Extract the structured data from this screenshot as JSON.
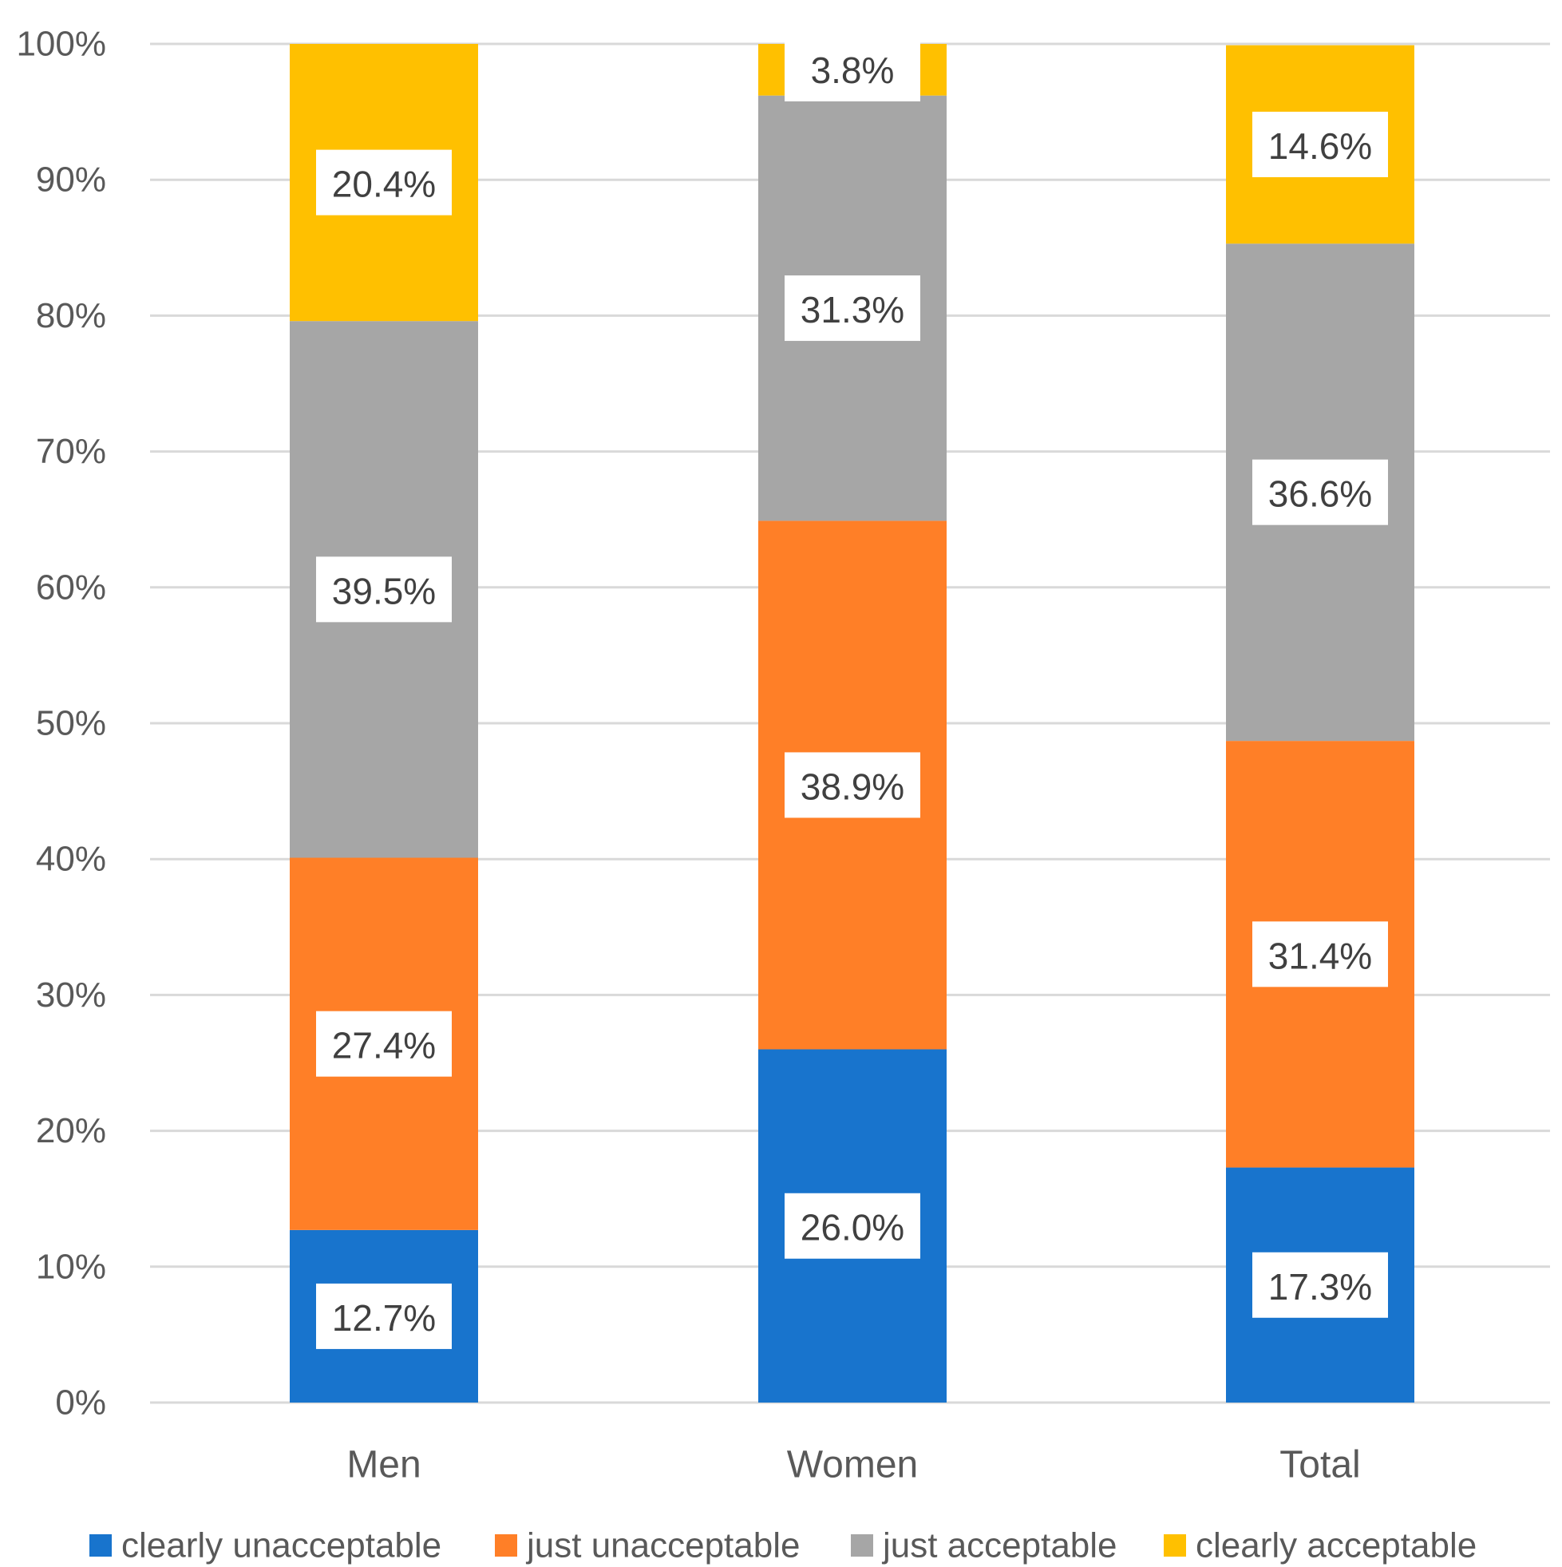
{
  "chart_data": {
    "type": "bar",
    "stacked": true,
    "categories": [
      "Men",
      "Women",
      "Total"
    ],
    "series": [
      {
        "name": "clearly unacceptable",
        "color": "#1874CD",
        "values": [
          12.7,
          26.0,
          17.3
        ],
        "labels": [
          "12.7%",
          "26.0%",
          "17.3%"
        ]
      },
      {
        "name": "just unacceptable",
        "color": "#FF7F27",
        "values": [
          27.4,
          38.9,
          31.4
        ],
        "labels": [
          "27.4%",
          "38.9%",
          "31.4%"
        ]
      },
      {
        "name": "just acceptable",
        "color": "#A6A6A6",
        "values": [
          39.5,
          31.3,
          36.6
        ],
        "labels": [
          "39.5%",
          "31.3%",
          "36.6%"
        ]
      },
      {
        "name": "clearly acceptable",
        "color": "#FFC000",
        "values": [
          20.4,
          3.8,
          14.6
        ],
        "labels": [
          "20.4%",
          "3.8%",
          "14.6%"
        ]
      }
    ],
    "yticks": [
      0,
      10,
      20,
      30,
      40,
      50,
      60,
      70,
      80,
      90,
      100
    ],
    "ytick_labels": [
      "0%",
      "10%",
      "20%",
      "30%",
      "40%",
      "50%",
      "60%",
      "70%",
      "80%",
      "90%",
      "100%"
    ],
    "ylim": [
      0,
      100
    ],
    "grid": true,
    "legend_position": "bottom",
    "title": "",
    "xlabel": "",
    "ylabel": ""
  }
}
